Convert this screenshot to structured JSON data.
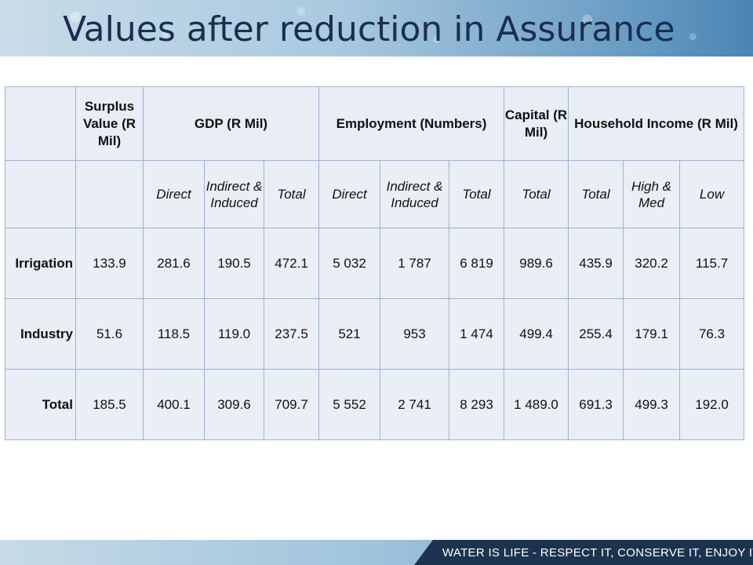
{
  "slide": {
    "title": "Values after reduction in Assurance",
    "footer": "WATER IS LIFE - RESPECT IT, CONSERVE IT, ENJOY IT."
  },
  "table": {
    "headers": {
      "surplus": "Surplus Value (R Mil)",
      "gdp": "GDP (R Mil)",
      "employment": "Employment (Numbers)",
      "capital": "Capital (R Mil)",
      "household": "Household Income (R Mil)"
    },
    "subheaders": [
      "Direct",
      "Indirect & Induced",
      "Total",
      "Direct",
      "Indirect & Induced",
      "Total",
      "Total",
      "Total",
      "High & Med",
      "Low"
    ],
    "rows": [
      {
        "label": "Irrigation",
        "values": [
          "133.9",
          "281.6",
          "190.5",
          "472.1",
          "5 032",
          "1 787",
          "6 819",
          "989.6",
          "435.9",
          "320.2",
          "115.7"
        ]
      },
      {
        "label": "Industry",
        "values": [
          "51.6",
          "118.5",
          "119.0",
          "237.5",
          "521",
          "953",
          "1 474",
          "499.4",
          "255.4",
          "179.1",
          "76.3"
        ]
      },
      {
        "label": "Total",
        "values": [
          "185.5",
          "400.1",
          "309.6",
          "709.7",
          "5 552",
          "2 741",
          "8 293",
          "1 489.0",
          "691.3",
          "499.3",
          "192.0"
        ]
      }
    ]
  }
}
